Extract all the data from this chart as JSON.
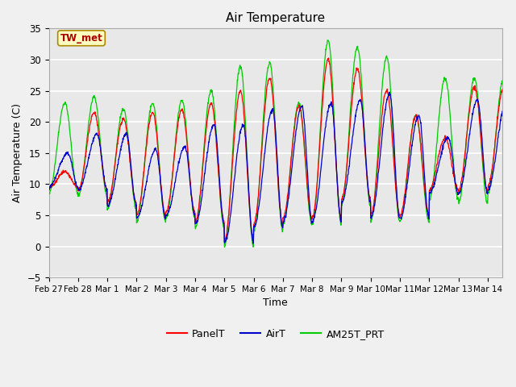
{
  "title": "Air Temperature",
  "xlabel": "Time",
  "ylabel": "Air Temperature (C)",
  "ylim": [
    -5,
    35
  ],
  "xlim_days": [
    0,
    15.5
  ],
  "axes_bg": "#e8e8e8",
  "fig_bg": "#f0f0f0",
  "grid_color": "#ffffff",
  "legend_labels": [
    "PanelT",
    "AirT",
    "AM25T_PRT"
  ],
  "legend_colors": [
    "#ff0000",
    "#0000cc",
    "#00cc00"
  ],
  "annotation_text": "TW_met",
  "annotation_bg": "#ffffc0",
  "annotation_border": "#aa8800",
  "annotation_color": "#aa0000",
  "x_tick_labels": [
    "Feb 27",
    "Feb 28",
    "Mar 1",
    "Mar 2",
    "Mar 3",
    "Mar 4",
    "Mar 5",
    "Mar 6",
    "Mar 7",
    "Mar 8",
    "Mar 9",
    "Mar 10",
    "Mar 11",
    "Mar 12",
    "Mar 13",
    "Mar 14"
  ],
  "x_tick_positions": [
    0,
    1,
    2,
    3,
    4,
    5,
    6,
    7,
    8,
    9,
    10,
    11,
    12,
    13,
    14,
    15
  ],
  "yticks": [
    -5,
    0,
    5,
    10,
    15,
    20,
    25,
    30,
    35
  ],
  "day_minima_p": [
    9.5,
    9.0,
    7.0,
    5.0,
    5.5,
    4.0,
    1.0,
    3.5,
    4.5,
    4.5,
    7.5,
    5.0,
    5.0,
    9.0,
    9.0,
    9.5
  ],
  "day_maxima_p": [
    12.0,
    21.5,
    20.5,
    21.5,
    22.0,
    23.0,
    25.0,
    27.0,
    22.5,
    30.0,
    28.5,
    25.0,
    21.0,
    17.5,
    25.5,
    25.5
  ],
  "day_minima_b": [
    9.5,
    9.0,
    6.5,
    4.5,
    5.0,
    3.5,
    0.5,
    3.0,
    4.0,
    4.0,
    7.0,
    4.5,
    4.5,
    8.5,
    8.5,
    9.0
  ],
  "day_maxima_b": [
    15.0,
    18.0,
    18.0,
    15.5,
    16.0,
    19.5,
    19.5,
    22.0,
    22.5,
    23.0,
    23.5,
    24.5,
    21.0,
    17.5,
    23.5,
    23.5
  ],
  "day_minima_g": [
    8.5,
    8.0,
    6.0,
    4.0,
    4.5,
    3.0,
    0.0,
    2.5,
    3.5,
    3.5,
    6.5,
    4.0,
    4.0,
    7.5,
    7.0,
    8.5
  ],
  "day_maxima_g": [
    23.0,
    24.0,
    22.0,
    23.0,
    23.5,
    25.0,
    29.0,
    29.5,
    23.0,
    33.0,
    32.0,
    30.5,
    21.0,
    27.0,
    27.0,
    27.0
  ]
}
